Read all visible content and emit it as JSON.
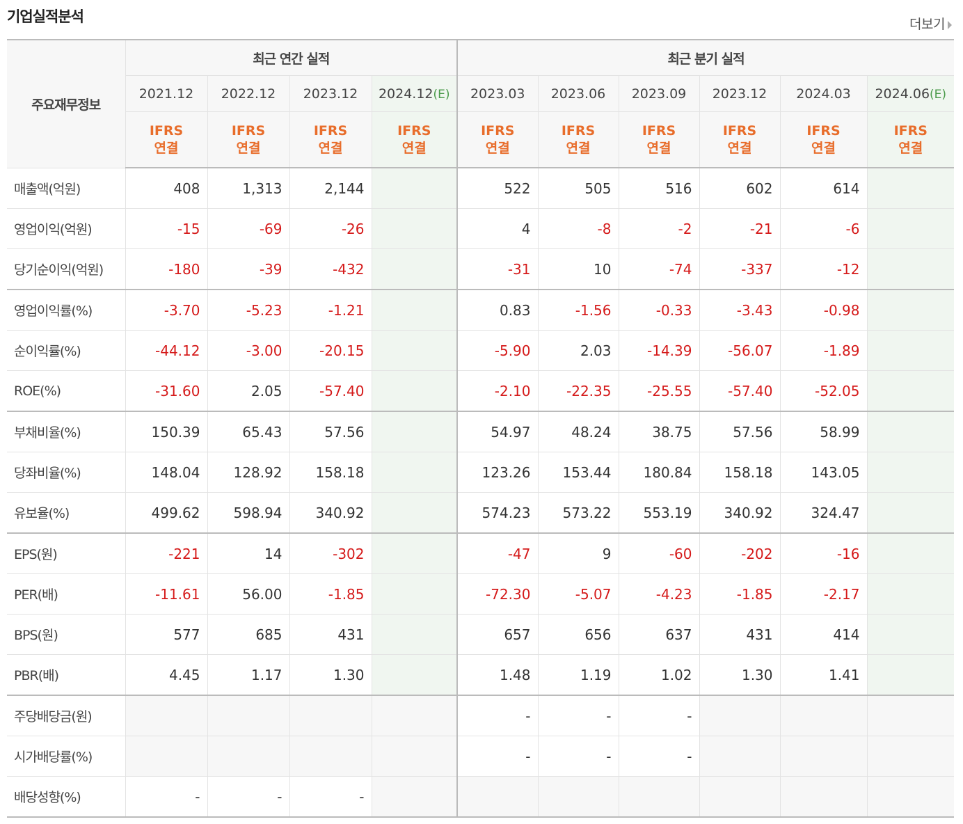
{
  "title": "기업실적분석",
  "more_label": "더보기",
  "header": {
    "row_label": "주요재무정보",
    "annual_group": "최근 연간 실적",
    "quarter_group": "최근 분기 실적",
    "annual_periods": [
      "2021.12",
      "2022.12",
      "2023.12",
      "2024.12"
    ],
    "quarter_periods": [
      "2023.03",
      "2023.06",
      "2023.09",
      "2023.12",
      "2024.03",
      "2024.06"
    ],
    "estimate_mark": "(E)",
    "basis_line1": "IFRS",
    "basis_line2": "연결"
  },
  "rows": [
    {
      "label": "매출액(억원)",
      "values": [
        "408",
        "1,313",
        "2,144",
        "",
        "522",
        "505",
        "516",
        "602",
        "614",
        ""
      ]
    },
    {
      "label": "영업이익(억원)",
      "values": [
        "-15",
        "-69",
        "-26",
        "",
        "4",
        "-8",
        "-2",
        "-21",
        "-6",
        ""
      ]
    },
    {
      "label": "당기순이익(억원)",
      "values": [
        "-180",
        "-39",
        "-432",
        "",
        "-31",
        "10",
        "-74",
        "-337",
        "-12",
        ""
      ]
    },
    {
      "label": "영업이익률(%)",
      "values": [
        "-3.70",
        "-5.23",
        "-1.21",
        "",
        "0.83",
        "-1.56",
        "-0.33",
        "-3.43",
        "-0.98",
        ""
      ]
    },
    {
      "label": "순이익률(%)",
      "values": [
        "-44.12",
        "-3.00",
        "-20.15",
        "",
        "-5.90",
        "2.03",
        "-14.39",
        "-56.07",
        "-1.89",
        ""
      ]
    },
    {
      "label": "ROE(%)",
      "values": [
        "-31.60",
        "2.05",
        "-57.40",
        "",
        "-2.10",
        "-22.35",
        "-25.55",
        "-57.40",
        "-52.05",
        ""
      ]
    },
    {
      "label": "부채비율(%)",
      "values": [
        "150.39",
        "65.43",
        "57.56",
        "",
        "54.97",
        "48.24",
        "38.75",
        "57.56",
        "58.99",
        ""
      ]
    },
    {
      "label": "당좌비율(%)",
      "values": [
        "148.04",
        "128.92",
        "158.18",
        "",
        "123.26",
        "153.44",
        "180.84",
        "158.18",
        "143.05",
        ""
      ]
    },
    {
      "label": "유보율(%)",
      "values": [
        "499.62",
        "598.94",
        "340.92",
        "",
        "574.23",
        "573.22",
        "553.19",
        "340.92",
        "324.47",
        ""
      ]
    },
    {
      "label": "EPS(원)",
      "values": [
        "-221",
        "14",
        "-302",
        "",
        "-47",
        "9",
        "-60",
        "-202",
        "-16",
        ""
      ]
    },
    {
      "label": "PER(배)",
      "values": [
        "-11.61",
        "56.00",
        "-1.85",
        "",
        "-72.30",
        "-5.07",
        "-4.23",
        "-1.85",
        "-2.17",
        ""
      ]
    },
    {
      "label": "BPS(원)",
      "values": [
        "577",
        "685",
        "431",
        "",
        "657",
        "656",
        "637",
        "431",
        "414",
        ""
      ]
    },
    {
      "label": "PBR(배)",
      "values": [
        "4.45",
        "1.17",
        "1.30",
        "",
        "1.48",
        "1.19",
        "1.02",
        "1.30",
        "1.41",
        ""
      ]
    },
    {
      "label": "주당배당금(원)",
      "values": [
        null,
        null,
        null,
        null,
        "-",
        "-",
        "-",
        null,
        null,
        null
      ]
    },
    {
      "label": "시가배당률(%)",
      "values": [
        null,
        null,
        null,
        null,
        "-",
        "-",
        "-",
        null,
        null,
        null
      ]
    },
    {
      "label": "배당성향(%)",
      "values": [
        "-",
        "-",
        "-",
        null,
        null,
        null,
        null,
        null,
        null,
        null
      ]
    }
  ],
  "colors": {
    "negative": "#d51a1a",
    "basis": "#e86d2b",
    "estimate_mark": "#4a9a4a",
    "estimate_bg": "#f0f6f0"
  }
}
